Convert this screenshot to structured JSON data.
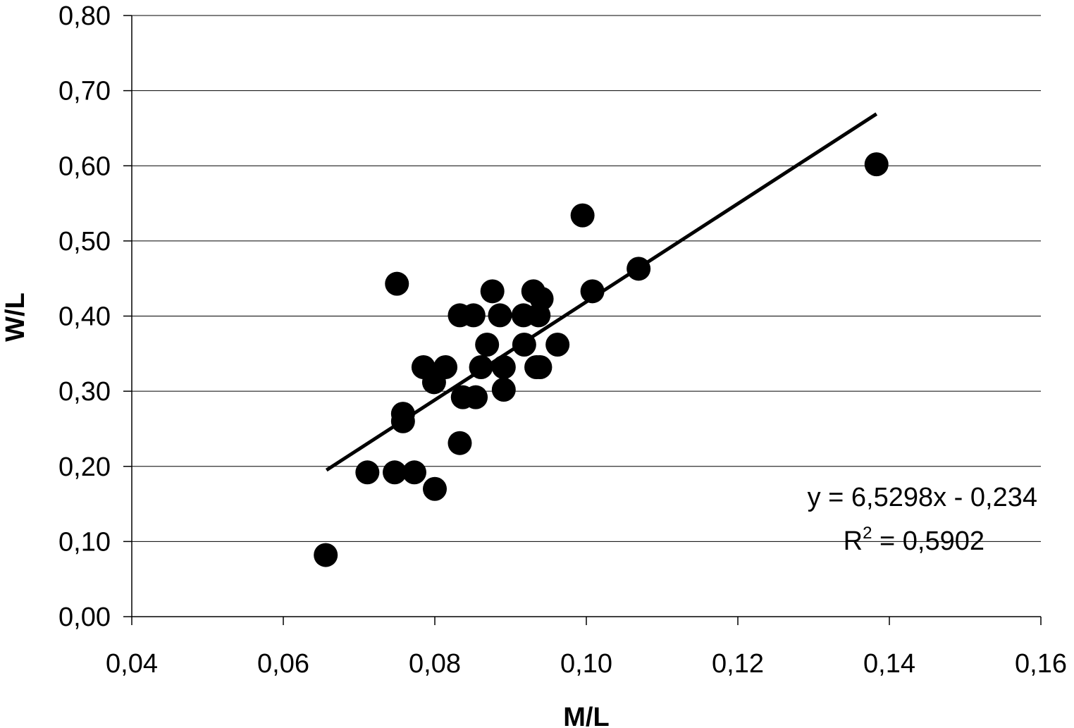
{
  "chart_data": {
    "type": "scatter",
    "xlabel": "M/L",
    "ylabel": "W/L",
    "xlim": [
      0.04,
      0.16
    ],
    "ylim": [
      0.0,
      0.8
    ],
    "xticks": [
      "0,04",
      "0,06",
      "0,08",
      "0,10",
      "0,12",
      "0,14",
      "0,16"
    ],
    "xtick_values": [
      0.04,
      0.06,
      0.08,
      0.1,
      0.12,
      0.14,
      0.16
    ],
    "yticks": [
      "0,00",
      "0,10",
      "0,20",
      "0,30",
      "0,40",
      "0,50",
      "0,60",
      "0,70",
      "0,80"
    ],
    "ytick_values": [
      0.0,
      0.1,
      0.2,
      0.3,
      0.4,
      0.5,
      0.6,
      0.7,
      0.8
    ],
    "grid": "horizontal",
    "points": [
      {
        "x": 0.0656,
        "y": 0.082
      },
      {
        "x": 0.0711,
        "y": 0.192
      },
      {
        "x": 0.0747,
        "y": 0.192
      },
      {
        "x": 0.0773,
        "y": 0.192
      },
      {
        "x": 0.08,
        "y": 0.17
      },
      {
        "x": 0.075,
        "y": 0.443
      },
      {
        "x": 0.0758,
        "y": 0.27
      },
      {
        "x": 0.0758,
        "y": 0.26
      },
      {
        "x": 0.0785,
        "y": 0.332
      },
      {
        "x": 0.0799,
        "y": 0.312
      },
      {
        "x": 0.0814,
        "y": 0.332
      },
      {
        "x": 0.0833,
        "y": 0.231
      },
      {
        "x": 0.0833,
        "y": 0.401
      },
      {
        "x": 0.0837,
        "y": 0.292
      },
      {
        "x": 0.0851,
        "y": 0.401
      },
      {
        "x": 0.0854,
        "y": 0.292
      },
      {
        "x": 0.0861,
        "y": 0.332
      },
      {
        "x": 0.0869,
        "y": 0.362
      },
      {
        "x": 0.0876,
        "y": 0.433
      },
      {
        "x": 0.0886,
        "y": 0.401
      },
      {
        "x": 0.0891,
        "y": 0.332
      },
      {
        "x": 0.0891,
        "y": 0.302
      },
      {
        "x": 0.0917,
        "y": 0.401
      },
      {
        "x": 0.0918,
        "y": 0.362
      },
      {
        "x": 0.093,
        "y": 0.433
      },
      {
        "x": 0.0934,
        "y": 0.332
      },
      {
        "x": 0.0937,
        "y": 0.401
      },
      {
        "x": 0.0939,
        "y": 0.332
      },
      {
        "x": 0.0941,
        "y": 0.423
      },
      {
        "x": 0.0962,
        "y": 0.362
      },
      {
        "x": 0.0995,
        "y": 0.534
      },
      {
        "x": 0.1008,
        "y": 0.433
      },
      {
        "x": 0.1069,
        "y": 0.463
      },
      {
        "x": 0.1383,
        "y": 0.602
      }
    ],
    "trendline": {
      "slope": 6.5298,
      "intercept": -0.234,
      "x_range": [
        0.0657,
        0.1383
      ],
      "equation": "y = 6,5298x - 0,234",
      "r2_prefix": "R",
      "r2_sup": "2",
      "r2_value": " = 0,5902"
    }
  }
}
